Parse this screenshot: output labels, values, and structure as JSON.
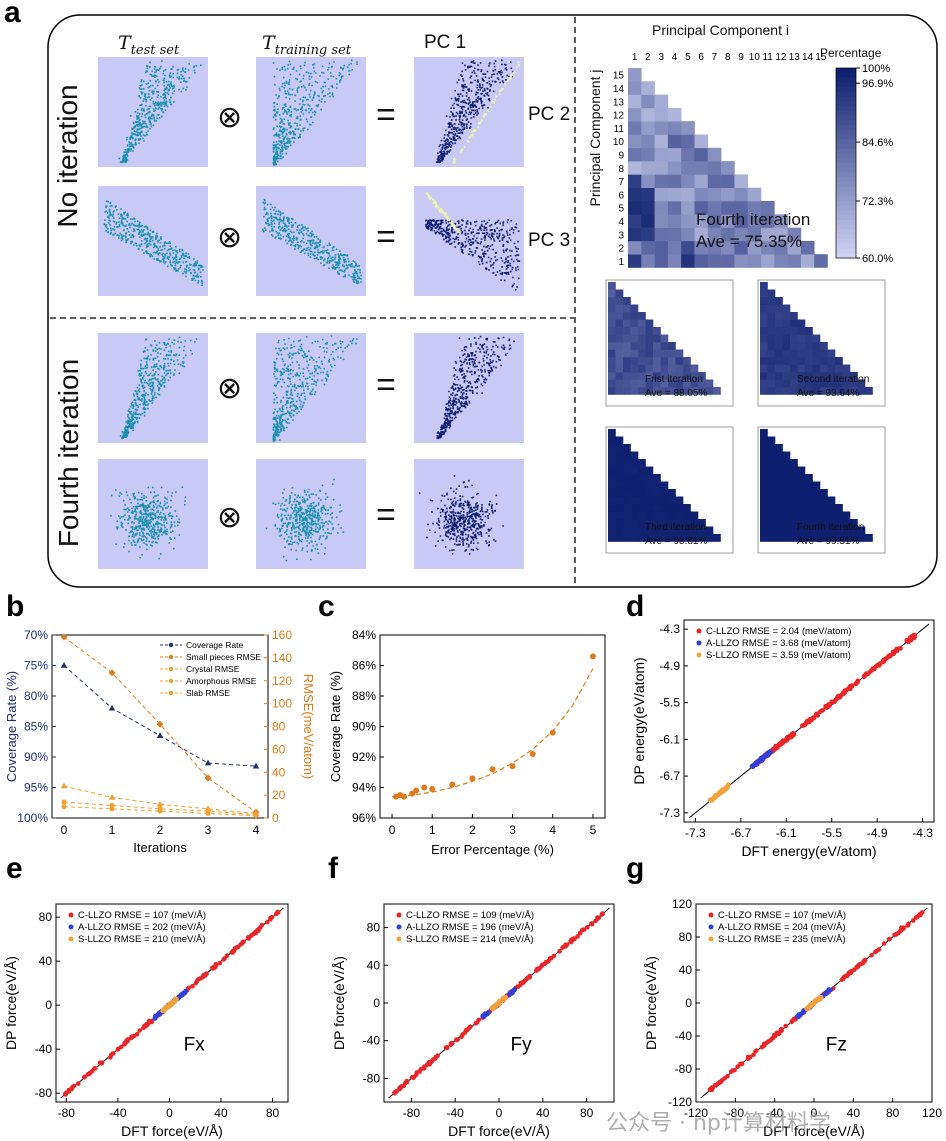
{
  "panel_a": {
    "letter": "a",
    "col_headers": [
      "T_test set",
      "T_training set",
      "PC 1"
    ],
    "row_groups": [
      "No iteration",
      "Fourth iteration"
    ],
    "side_labels": [
      "PC 2",
      "PC 3"
    ],
    "operators": {
      "times": "⊗",
      "equals": "="
    },
    "heatmap_title": "Principal Component i",
    "heatmap_ylabel": "Principal Component j",
    "x_ticks": [
      "1",
      "2",
      "3",
      "4",
      "5",
      "6",
      "7",
      "8",
      "9",
      "10",
      "11",
      "12",
      "13",
      "14",
      "15"
    ],
    "y_ticks": [
      "15",
      "14",
      "13",
      "12",
      "11",
      "10",
      "9",
      "8",
      "7",
      "6",
      "5",
      "4",
      "3",
      "2",
      "1"
    ],
    "colorbar_title": "Percentage",
    "colorbar_ticks": [
      "100%",
      "96.9%",
      "84.6%",
      "72.3%",
      "60.0%"
    ],
    "main_iteration": {
      "name": "Fourth iteration",
      "ave": "Ave = 75.35%"
    },
    "small_maps": [
      {
        "name": "Frist iteration",
        "ave": "Ave = 88.05%"
      },
      {
        "name": "Second iteration",
        "ave": "Ave = 93.64%"
      },
      {
        "name": "Third iteration",
        "ave": "Ave = 98.81%"
      },
      {
        "name": "Fourth iteration",
        "ave": "Ave = 99.51%"
      }
    ]
  },
  "chart_data": [
    {
      "id": "b",
      "type": "line",
      "x": [
        0,
        1,
        2,
        3,
        4
      ],
      "xlabel": "Iterations",
      "ylabel_left": "Coverage Rate (%)",
      "ylabel_right": "RMSE(meV/atom)",
      "left_ticks": [
        "70%",
        "75%",
        "80%",
        "85%",
        "90%",
        "95%",
        "100%"
      ],
      "right_ticks": [
        "0",
        "20",
        "40",
        "60",
        "80",
        "100",
        "120",
        "140",
        "160"
      ],
      "ylim_left": [
        100,
        70
      ],
      "ylim_right": [
        0,
        160
      ],
      "series": [
        {
          "name": "Coverage Rate",
          "axis": "left",
          "marker": "star",
          "color": "#1f2f6e",
          "values": [
            75,
            82,
            86.5,
            91,
            91.5
          ]
        },
        {
          "name": "Small pieces RMSE",
          "axis": "right",
          "marker": "diamond",
          "color": "#e07b1a",
          "values": [
            165,
            127,
            82,
            35,
            5
          ]
        },
        {
          "name": "Crystal RMSE",
          "axis": "right",
          "marker": "circle",
          "color": "#f0a030",
          "values": [
            10,
            8,
            6,
            4,
            2
          ]
        },
        {
          "name": "Amorphous RMSE",
          "axis": "right",
          "marker": "circle",
          "color": "#f0a030",
          "values": [
            14,
            11,
            8,
            6,
            3
          ]
        },
        {
          "name": "Slab RMSE",
          "axis": "right",
          "marker": "triangle",
          "color": "#f0a030",
          "values": [
            28,
            18,
            12,
            8,
            4
          ]
        }
      ]
    },
    {
      "id": "c",
      "type": "scatter",
      "xlabel": "Error Percentage (%)",
      "ylabel": "Coverage Rate (%)",
      "x_ticks": [
        "0",
        "1",
        "2",
        "3",
        "4",
        "5"
      ],
      "y_ticks": [
        "84%",
        "86%",
        "88%",
        "90%",
        "92%",
        "94%",
        "96%"
      ],
      "xlim": [
        -0.3,
        5.3
      ],
      "ylim": [
        96,
        84
      ],
      "color": "#e07b1a",
      "points": [
        [
          0.1,
          94.6
        ],
        [
          0.2,
          94.5
        ],
        [
          0.3,
          94.6
        ],
        [
          0.5,
          94.4
        ],
        [
          0.6,
          94.2
        ],
        [
          0.8,
          94
        ],
        [
          1.0,
          94.1
        ],
        [
          1.5,
          93.8
        ],
        [
          2.0,
          93.4
        ],
        [
          2.5,
          92.8
        ],
        [
          3.0,
          92.6
        ],
        [
          3.5,
          91.8
        ],
        [
          4.0,
          90.4
        ],
        [
          5.0,
          85.4
        ]
      ],
      "fit": [
        [
          0,
          94.6
        ],
        [
          0.5,
          94.5
        ],
        [
          1,
          94.3
        ],
        [
          1.5,
          94.0
        ],
        [
          2,
          93.6
        ],
        [
          2.5,
          93.1
        ],
        [
          3,
          92.4
        ],
        [
          3.5,
          91.5
        ],
        [
          4,
          90.3
        ],
        [
          4.5,
          88.6
        ],
        [
          5,
          86.2
        ]
      ]
    },
    {
      "id": "d",
      "type": "scatter",
      "xlabel": "DFT energy(eV/atom)",
      "ylabel": "DP energy(eV/atom)",
      "ticks": [
        "-7.3",
        "-6.7",
        "-6.1",
        "-5.5",
        "-4.9",
        "-4.3"
      ],
      "lim": [
        -7.45,
        -4.15
      ],
      "legend": [
        "C-LLZO RMSE = 2.04 (meV/atom)",
        "A-LLZO RMSE = 3.68 (meV/atom)",
        "S-LLZO RMSE = 3.59 (meV/atom)"
      ],
      "clusters": [
        {
          "name": "C-LLZO",
          "color": "#e8262a",
          "ranges": [
            [
              -4.5,
              -4.4
            ],
            [
              -5.9,
              -4.6
            ],
            [
              -6.5,
              -6.0
            ]
          ]
        },
        {
          "name": "A-LLZO",
          "color": "#2f3fd8",
          "ranges": [
            [
              -6.55,
              -6.3
            ]
          ]
        },
        {
          "name": "S-LLZO",
          "color": "#f2a23a",
          "ranges": [
            [
              -7.1,
              -6.85
            ]
          ]
        }
      ]
    },
    {
      "id": "e",
      "type": "scatter",
      "xlabel": "DFT force(eV/Å)",
      "ylabel": "DP force(eV/Å)",
      "ticks": [
        "-80",
        "-40",
        "0",
        "40",
        "80"
      ],
      "lim": [
        -88,
        92
      ],
      "annotation": "Fx",
      "legend": [
        "C-LLZO RMSE = 107 (meV/Å)",
        "A-LLZO RMSE = 202 (meV/Å)",
        "S-LLZO RMSE = 210 (meV/Å)"
      ]
    },
    {
      "id": "f",
      "type": "scatter",
      "xlabel": "DFT force(eV/Å)",
      "ylabel": "DP force(eV/Å)",
      "ticks": [
        "-80",
        "-40",
        "0",
        "40",
        "80"
      ],
      "lim": [
        -105,
        105
      ],
      "annotation": "Fy",
      "legend": [
        "C-LLZO RMSE = 109 (meV/Å)",
        "A-LLZO RMSE = 196 (meV/Å)",
        "S-LLZO RMSE = 214 (meV/Å)"
      ]
    },
    {
      "id": "g",
      "type": "scatter",
      "xlabel": "DFT force(eV/Å)",
      "ylabel": "DP force(eV/Å)",
      "ticks": [
        "-120",
        "-80",
        "-40",
        "0",
        "40",
        "80",
        "120"
      ],
      "lim": [
        -120,
        120
      ],
      "annotation": "Fz",
      "legend": [
        "C-LLZO RMSE = 107 (meV/Å)",
        "A-LLZO RMSE = 204 (meV/Å)",
        "S-LLZO RMSE = 235 (meV/Å)"
      ]
    }
  ],
  "panel_letters": [
    "a",
    "b",
    "c",
    "d",
    "e",
    "f",
    "g"
  ],
  "watermark": "公众号 · np计算材料学",
  "colors": {
    "navy": "#0d1f6e",
    "teal": "#1b8fb0",
    "bg_lavender": "#c9c9f5",
    "orange": "#e07b1a",
    "red": "#e8262a",
    "blue": "#2f3fd8",
    "yellow": "#f2a23a"
  }
}
